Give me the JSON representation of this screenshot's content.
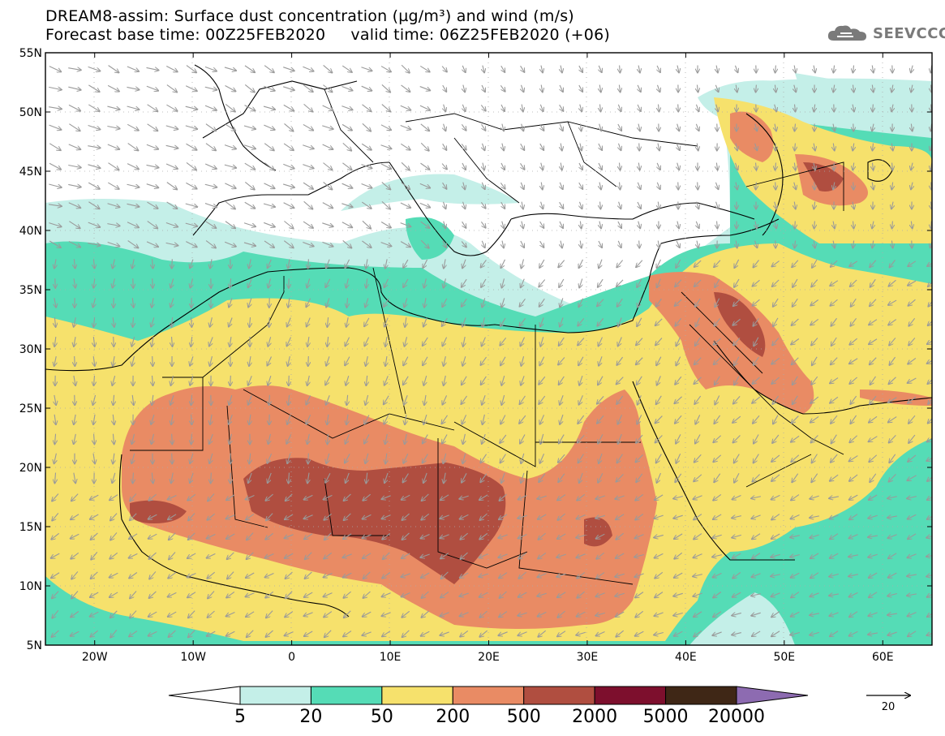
{
  "header": {
    "title_line1": "DREAM8-assim: Surface dust concentration (µg/m³) and wind (m/s)",
    "title_line2": "Forecast base time: 00Z25FEB2020     valid time: 06Z25FEB2020 (+06)",
    "logo_text": "SEEVCCC"
  },
  "map": {
    "lat_labels": [
      "55N",
      "50N",
      "45N",
      "40N",
      "35N",
      "30N",
      "25N",
      "20N",
      "15N",
      "10N",
      "5N"
    ],
    "lon_labels": [
      "20W",
      "10W",
      "0",
      "10E",
      "20E",
      "30E",
      "40E",
      "50E",
      "60E"
    ],
    "lat_range": [
      5,
      55
    ],
    "lon_range": [
      -25,
      65
    ]
  },
  "legend": {
    "tick_labels": [
      "5",
      "20",
      "50",
      "200",
      "500",
      "2000",
      "5000",
      "20000"
    ],
    "colors": [
      "#ffffff",
      "#c4efe8",
      "#55dcb6",
      "#f6e16c",
      "#e98b64",
      "#b04e40",
      "#7d0f2d",
      "#3f2716",
      "#8d6bb1"
    ],
    "wind_reference": "20"
  }
}
